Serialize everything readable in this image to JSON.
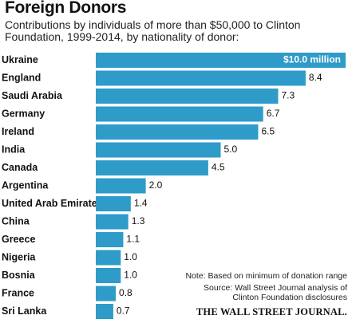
{
  "title": "Foreign Donors",
  "subtitle": "Contributions by individuals of more than $50,000 to Clinton Foundation, 1999-2014, by nationality of donor:",
  "note": "Note: Based on minimum of donation range",
  "source": "Source: Wall Street Journal analysis of Clinton Foundation disclosures",
  "credit": "THE WALL STREET JOURNAL.",
  "colors": {
    "bar": "#2e9bc9",
    "label_inside": "#ffffff"
  },
  "chart_data": {
    "type": "bar",
    "orientation": "horizontal",
    "title": "Foreign Donors",
    "subtitle": "Contributions by individuals of more than $50,000 to Clinton Foundation, 1999-2014, by nationality of donor:",
    "categories": [
      "Ukraine",
      "England",
      "Saudi Arabia",
      "Germany",
      "Ireland",
      "India",
      "Canada",
      "Argentina",
      "United Arab Emirates",
      "China",
      "Greece",
      "Nigeria",
      "Bosnia",
      "France",
      "Sri Lanka"
    ],
    "values": [
      10.0,
      8.4,
      7.3,
      6.7,
      6.5,
      5.0,
      4.5,
      2.0,
      1.4,
      1.3,
      1.1,
      1.0,
      1.0,
      0.8,
      0.7
    ],
    "value_labels": [
      "$10.0 million",
      "8.4",
      "7.3",
      "6.7",
      "6.5",
      "5.0",
      "4.5",
      "2.0",
      "1.4",
      "1.3",
      "1.1",
      "1.0",
      "1.0",
      "0.8",
      "0.7"
    ],
    "xlim": [
      0,
      10
    ],
    "grid": false,
    "legend": "none"
  }
}
